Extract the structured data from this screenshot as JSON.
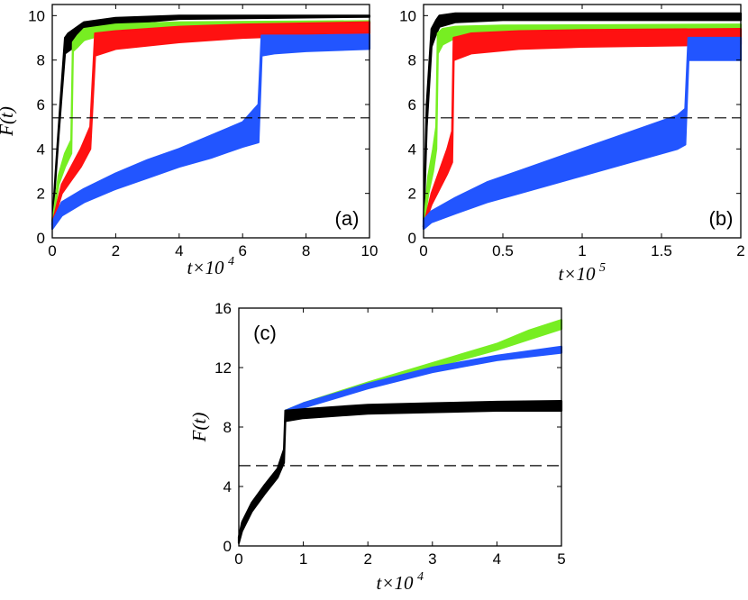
{
  "chart_data": [
    {
      "type": "line",
      "panel_label": "(a)",
      "xlabel": "t×10",
      "xlabel_exp": "4",
      "ylabel": "F(t)",
      "xlim": [
        0,
        10
      ],
      "ylim": [
        0,
        10.5
      ],
      "xticks": [
        0,
        2,
        4,
        6,
        8,
        10
      ],
      "yticks": [
        0,
        2,
        4,
        6,
        8,
        10
      ],
      "threshold": 5.4,
      "series": [
        {
          "name": "black",
          "color": "#000000",
          "x": [
            0,
            0.1,
            0.2,
            0.3,
            0.4,
            0.5,
            1,
            2,
            4,
            10
          ],
          "lo": [
            0.6,
            2.6,
            4.6,
            6.5,
            8.3,
            8.4,
            8.9,
            9.6,
            9.85,
            9.95
          ],
          "hi": [
            0.6,
            2.8,
            4.9,
            7.0,
            9.0,
            9.2,
            9.7,
            9.9,
            10.0,
            10.0
          ]
        },
        {
          "name": "green",
          "color": "#77ee22",
          "x": [
            0,
            0.2,
            0.4,
            0.6,
            0.65,
            0.8,
            1,
            2,
            4,
            10
          ],
          "lo": [
            0.6,
            2.4,
            3.2,
            3.8,
            8.4,
            8.6,
            8.9,
            9.3,
            9.55,
            9.65
          ],
          "hi": [
            0.6,
            2.8,
            3.8,
            4.4,
            8.8,
            9.1,
            9.4,
            9.6,
            9.7,
            9.75
          ]
        },
        {
          "name": "red",
          "color": "#ff1111",
          "x": [
            0,
            0.3,
            0.6,
            0.9,
            1.2,
            1.35,
            2,
            4,
            6,
            10
          ],
          "lo": [
            0.6,
            2.0,
            2.6,
            3.2,
            4.0,
            8.2,
            8.5,
            8.8,
            9.0,
            9.2
          ],
          "hi": [
            0.6,
            2.4,
            3.2,
            4.0,
            5.0,
            9.2,
            9.3,
            9.5,
            9.6,
            9.7
          ]
        },
        {
          "name": "blue",
          "color": "#2255ff",
          "x": [
            0,
            0.3,
            1,
            2,
            3,
            4,
            5,
            6,
            6.5,
            6.6,
            7,
            8,
            10
          ],
          "lo": [
            0.4,
            1.0,
            1.6,
            2.2,
            2.7,
            3.2,
            3.6,
            4.1,
            4.3,
            8.2,
            8.3,
            8.4,
            8.5
          ],
          "hi": [
            0.7,
            1.6,
            2.2,
            2.9,
            3.5,
            4.0,
            4.6,
            5.2,
            6.0,
            9.1,
            9.1,
            9.1,
            9.15
          ]
        }
      ]
    },
    {
      "type": "line",
      "panel_label": "(b)",
      "xlabel": "t×10",
      "xlabel_exp": "5",
      "ylabel": "",
      "xlim": [
        0,
        2
      ],
      "ylim": [
        0,
        10.5
      ],
      "xticks": [
        0,
        0.5,
        1,
        1.5,
        2
      ],
      "xtick_labels": [
        "0",
        "0.5",
        "1",
        "1.5",
        "2"
      ],
      "yticks": [
        0,
        2,
        4,
        6,
        8,
        10
      ],
      "threshold": 5.4,
      "series": [
        {
          "name": "black",
          "color": "#000000",
          "x": [
            0,
            0.02,
            0.05,
            0.08,
            0.1,
            0.2,
            0.5,
            2
          ],
          "lo": [
            0.5,
            5.0,
            8.6,
            9.2,
            9.5,
            9.7,
            9.8,
            9.8
          ],
          "hi": [
            0.5,
            6.0,
            9.4,
            9.8,
            10.0,
            10.1,
            10.1,
            10.1
          ]
        },
        {
          "name": "green",
          "color": "#77ee22",
          "x": [
            0,
            0.03,
            0.06,
            0.08,
            0.09,
            0.12,
            0.2,
            0.5,
            2
          ],
          "lo": [
            0.5,
            2.0,
            3.0,
            4.0,
            8.3,
            8.7,
            9.0,
            9.3,
            9.45
          ],
          "hi": [
            0.5,
            2.8,
            4.0,
            5.0,
            9.2,
            9.4,
            9.5,
            9.55,
            9.6
          ]
        },
        {
          "name": "red",
          "color": "#ff1111",
          "x": [
            0,
            0.05,
            0.1,
            0.15,
            0.18,
            0.19,
            0.3,
            0.6,
            1,
            2
          ],
          "lo": [
            0.5,
            1.5,
            2.2,
            2.9,
            3.4,
            8.0,
            8.3,
            8.5,
            8.6,
            8.7
          ],
          "hi": [
            0.5,
            2.0,
            3.0,
            4.0,
            4.8,
            9.0,
            9.2,
            9.3,
            9.35,
            9.4
          ]
        },
        {
          "name": "blue",
          "color": "#2255ff",
          "x": [
            0,
            0.05,
            0.2,
            0.4,
            0.6,
            0.8,
            1,
            1.2,
            1.4,
            1.6,
            1.65,
            1.67,
            2
          ],
          "lo": [
            0.4,
            0.7,
            1.1,
            1.6,
            2.0,
            2.4,
            2.8,
            3.2,
            3.6,
            4.0,
            4.2,
            8.0,
            8.0
          ],
          "hi": [
            0.8,
            1.2,
            1.8,
            2.5,
            3.0,
            3.5,
            4.0,
            4.5,
            5.0,
            5.5,
            5.8,
            9.0,
            9.0
          ]
        }
      ]
    },
    {
      "type": "line",
      "panel_label": "(c)",
      "xlabel": "t×10",
      "xlabel_exp": "4",
      "ylabel": "F(t)",
      "xlim": [
        0,
        5
      ],
      "ylim": [
        0,
        16
      ],
      "xticks": [
        0,
        1,
        2,
        3,
        4,
        5
      ],
      "yticks": [
        0,
        4,
        8,
        12,
        16
      ],
      "threshold": 5.4,
      "series": [
        {
          "name": "green",
          "color": "#77ee22",
          "x": [
            0.72,
            1,
            2,
            3,
            4,
            4.5,
            5
          ],
          "lo": [
            8.7,
            9.3,
            10.7,
            12.0,
            13.2,
            13.9,
            14.6
          ],
          "hi": [
            9.1,
            9.6,
            11.0,
            12.3,
            13.6,
            14.5,
            15.2
          ]
        },
        {
          "name": "blue",
          "color": "#2255ff",
          "x": [
            0.72,
            1,
            2,
            3,
            4,
            5
          ],
          "lo": [
            8.7,
            9.3,
            10.6,
            11.7,
            12.5,
            13.0
          ],
          "hi": [
            9.1,
            9.6,
            10.9,
            12.0,
            12.8,
            13.4
          ]
        },
        {
          "name": "black",
          "color": "#000000",
          "x": [
            0,
            0.05,
            0.2,
            0.4,
            0.6,
            0.7,
            0.72,
            1,
            2,
            3,
            4,
            5
          ],
          "lo": [
            0.2,
            1.0,
            2.3,
            3.5,
            4.6,
            5.6,
            8.4,
            8.6,
            8.9,
            9.0,
            9.1,
            9.1
          ],
          "hi": [
            0.6,
            1.6,
            2.9,
            4.1,
            5.2,
            6.5,
            9.1,
            9.2,
            9.5,
            9.6,
            9.7,
            9.75
          ]
        }
      ]
    }
  ]
}
